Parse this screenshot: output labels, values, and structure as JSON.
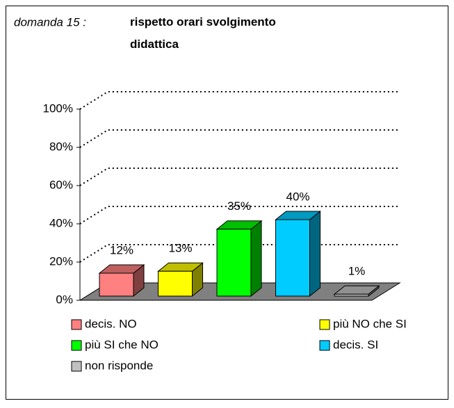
{
  "chart_data": {
    "type": "bar3d",
    "title_prefix": "domanda 15 :",
    "title": "rispetto orari svolgimento didattica",
    "categories": [
      "decis. NO",
      "più NO che SI",
      "più SI che NO",
      "decis. SI",
      "non risponde"
    ],
    "values": [
      12,
      13,
      35,
      40,
      1
    ],
    "value_labels": [
      "12%",
      "13%",
      "35%",
      "40%",
      "1%"
    ],
    "colors": [
      "#ff8080",
      "#ffff00",
      "#00ff00",
      "#00ccff",
      "#c0c0c0"
    ],
    "ylim": [
      0,
      100
    ],
    "yticks": [
      {
        "value": 0,
        "label": "0%"
      },
      {
        "value": 20,
        "label": "20%"
      },
      {
        "value": 40,
        "label": "40%"
      },
      {
        "value": 60,
        "label": "60%"
      },
      {
        "value": 80,
        "label": "80%"
      },
      {
        "value": 100,
        "label": "100%"
      }
    ],
    "grid": true
  }
}
